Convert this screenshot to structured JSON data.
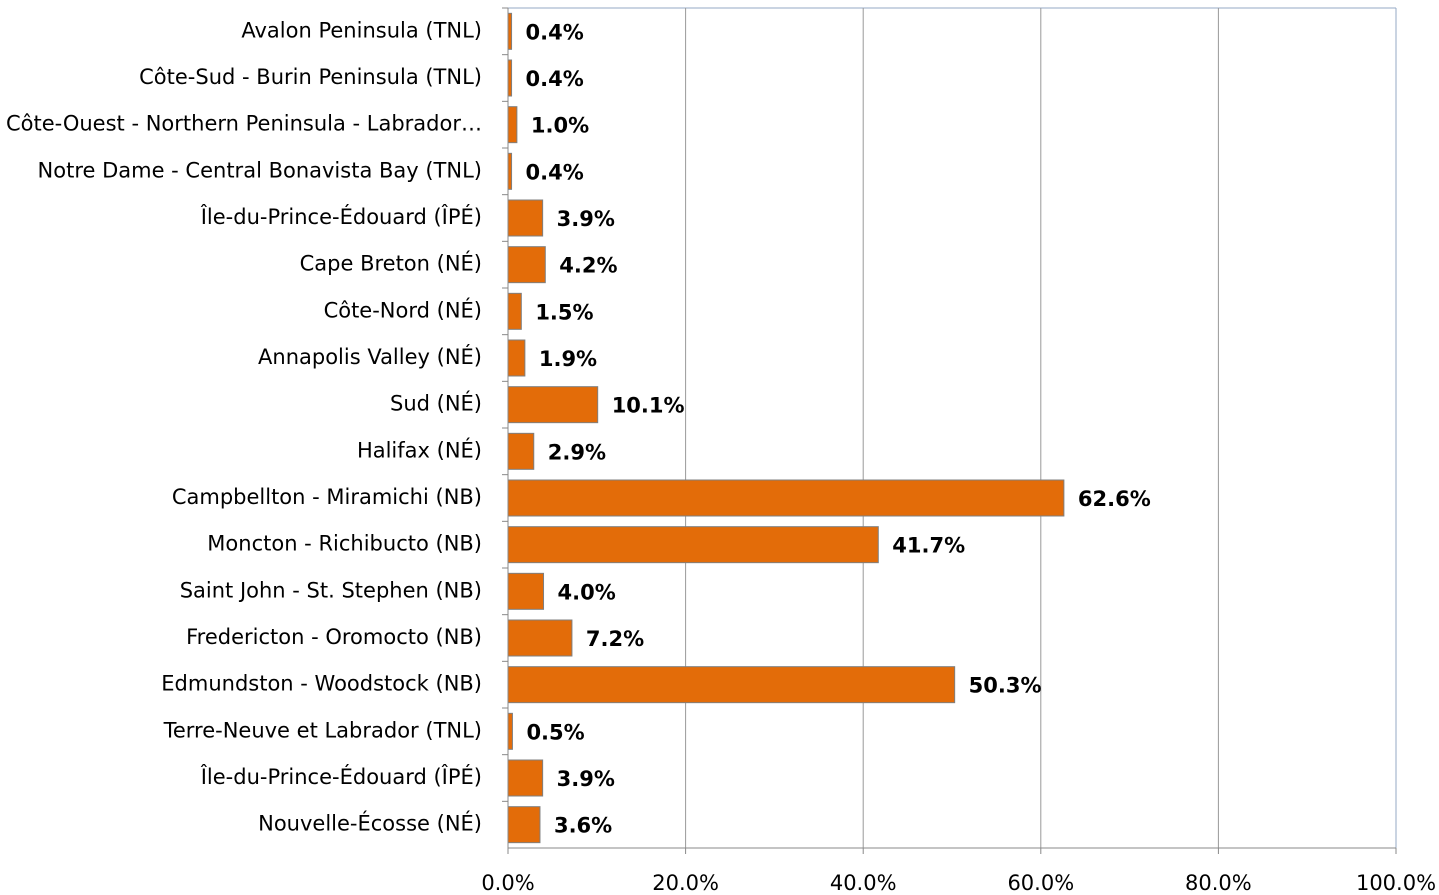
{
  "chart_data": {
    "type": "bar",
    "orientation": "horizontal",
    "categories": [
      "Avalon Peninsula (TNL)",
      "Côte-Sud - Burin Peninsula (TNL)",
      "Côte-Ouest - Northern Peninsula - Labrador…",
      "Notre Dame - Central Bonavista Bay (TNL)",
      "Île-du-Prince-Édouard (ÎPÉ)",
      "Cape Breton (NÉ)",
      "Côte-Nord (NÉ)",
      "Annapolis Valley (NÉ)",
      "Sud (NÉ)",
      "Halifax (NÉ)",
      "Campbellton - Miramichi (NB)",
      "Moncton - Richibucto (NB)",
      "Saint John - St. Stephen (NB)",
      "Fredericton - Oromocto (NB)",
      "Edmundston - Woodstock (NB)",
      "Terre-Neuve et Labrador (TNL)",
      "Île-du-Prince-Édouard (ÎPÉ)",
      "Nouvelle-Écosse (NÉ)"
    ],
    "values": [
      0.4,
      0.4,
      1.0,
      0.4,
      3.9,
      4.2,
      1.5,
      1.9,
      10.1,
      2.9,
      62.6,
      41.7,
      4.0,
      7.2,
      50.3,
      0.5,
      3.9,
      3.6
    ],
    "value_labels": [
      "0.4%",
      "0.4%",
      "1.0%",
      "0.4%",
      "3.9%",
      "4.2%",
      "1.5%",
      "1.9%",
      "10.1%",
      "2.9%",
      "62.6%",
      "41.7%",
      "4.0%",
      "7.2%",
      "50.3%",
      "0.5%",
      "3.9%",
      "3.6%"
    ],
    "color": "#e36c09",
    "xlim": [
      0,
      100
    ],
    "xticks": [
      {
        "value": 0,
        "label": "0.0%"
      },
      {
        "value": 20,
        "label": "20.0%"
      },
      {
        "value": 40,
        "label": "40.0%"
      },
      {
        "value": 60,
        "label": "60.0%"
      },
      {
        "value": 80,
        "label": "80.0%"
      },
      {
        "value": 100,
        "label": "100.0%"
      }
    ],
    "grid": true
  }
}
